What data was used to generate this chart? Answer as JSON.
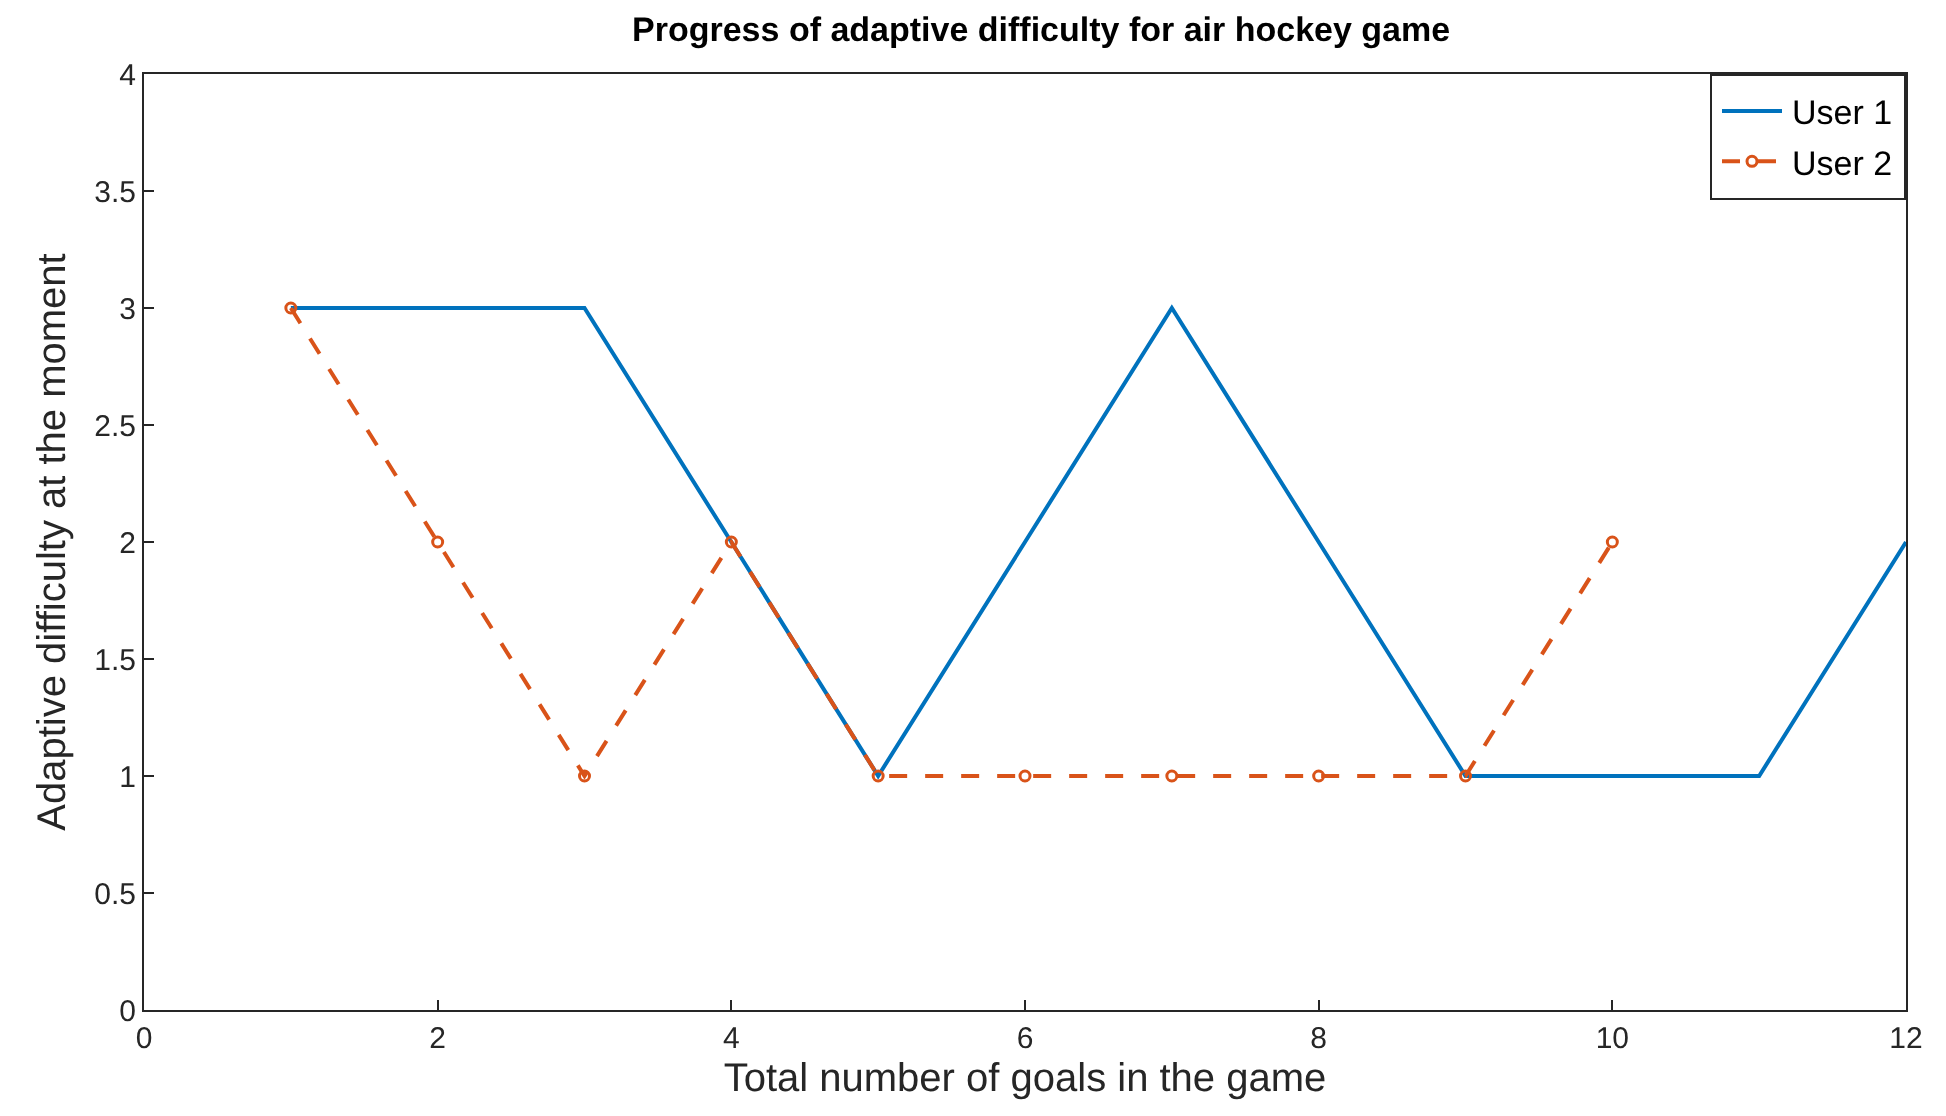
{
  "chart_data": {
    "type": "line",
    "title": "Progress of adaptive difficulty for air hockey game",
    "xlabel": "Total number of goals in the game",
    "ylabel": "Adaptive difficulty at the moment",
    "series": [
      {
        "name": "User 1",
        "color": "#0072bd",
        "x": [
          1,
          2,
          3,
          4,
          5,
          6,
          7,
          8,
          9,
          10,
          11,
          12
        ],
        "values": [
          3,
          3,
          3,
          2,
          1,
          2,
          3,
          2,
          1,
          1,
          1,
          2
        ],
        "line_style": "solid",
        "marker": "none"
      },
      {
        "name": "User 2",
        "color": "#d95319",
        "x": [
          1,
          2,
          3,
          4,
          5,
          6,
          7,
          8,
          9,
          10
        ],
        "values": [
          3,
          2,
          1,
          2,
          1,
          1,
          1,
          1,
          1,
          2
        ],
        "line_style": "dashed",
        "marker": "circle"
      }
    ],
    "xlim": [
      0,
      12
    ],
    "xticks": [
      0,
      2,
      4,
      6,
      8,
      10,
      12
    ],
    "ylim": [
      0,
      4
    ],
    "yticks": [
      0,
      0.5,
      1,
      1.5,
      2,
      2.5,
      3,
      3.5,
      4
    ],
    "legend": "top right"
  }
}
